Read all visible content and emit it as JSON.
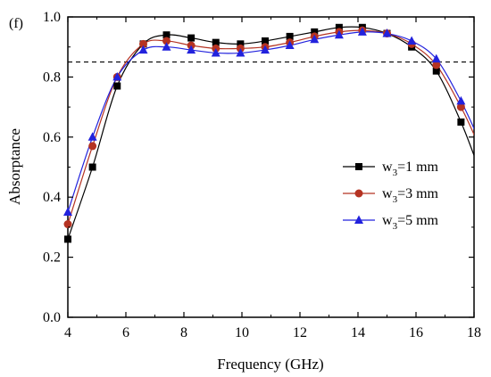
{
  "panel_label": "(f)",
  "chart_data": {
    "type": "line",
    "xlabel": "Frequency (GHz)",
    "ylabel": "Absorptance",
    "xlim": [
      4,
      18
    ],
    "ylim": [
      0.0,
      1.0
    ],
    "xticks": [
      4,
      6,
      8,
      10,
      12,
      14,
      16,
      18
    ],
    "yticks": [
      0.0,
      0.2,
      0.4,
      0.6,
      0.8,
      1.0
    ],
    "xtick_labels": [
      "4",
      "6",
      "8",
      "10",
      "12",
      "14",
      "16",
      "18"
    ],
    "ytick_labels": [
      "0.0",
      "0.2",
      "0.4",
      "0.6",
      "0.8",
      "1.0"
    ],
    "reference_line": {
      "y": 0.85,
      "style": "dashed"
    },
    "legend_position": "center-right",
    "series": [
      {
        "name": "w3=1 mm",
        "legend_main": "w",
        "legend_sub": "3",
        "legend_rest": "=1 mm",
        "color": "#000000",
        "marker_fill": "#000000",
        "marker": "square",
        "x": [
          4.0,
          4.85,
          5.7,
          6.6,
          7.4,
          8.25,
          9.1,
          9.95,
          10.8,
          11.65,
          12.5,
          13.35,
          14.15,
          15.0,
          15.85,
          16.7,
          17.55
        ],
        "y": [
          0.26,
          0.5,
          0.77,
          0.91,
          0.94,
          0.93,
          0.915,
          0.91,
          0.92,
          0.935,
          0.95,
          0.965,
          0.965,
          0.945,
          0.9,
          0.82,
          0.65
        ]
      },
      {
        "name": "w3=3 mm",
        "legend_main": "w",
        "legend_sub": "3",
        "legend_rest": "=3 mm",
        "color": "#b53322",
        "marker_fill": "#b53322",
        "marker": "circle",
        "x": [
          4.0,
          4.85,
          5.7,
          6.6,
          7.4,
          8.25,
          9.1,
          9.95,
          10.8,
          11.65,
          12.5,
          13.35,
          14.15,
          15.0,
          15.85,
          16.7,
          17.55
        ],
        "y": [
          0.31,
          0.57,
          0.8,
          0.91,
          0.92,
          0.905,
          0.895,
          0.895,
          0.9,
          0.915,
          0.935,
          0.95,
          0.955,
          0.945,
          0.91,
          0.84,
          0.7
        ]
      },
      {
        "name": "w3=5 mm",
        "legend_main": "w",
        "legend_sub": "3",
        "legend_rest": "=5 mm",
        "color": "#2222dd",
        "marker_fill": "#2222dd",
        "marker": "triangle",
        "x": [
          4.0,
          4.85,
          5.7,
          6.6,
          7.4,
          8.25,
          9.1,
          9.95,
          10.8,
          11.65,
          12.5,
          13.35,
          14.15,
          15.0,
          15.85,
          16.7,
          17.55
        ],
        "y": [
          0.35,
          0.6,
          0.8,
          0.89,
          0.9,
          0.89,
          0.88,
          0.88,
          0.89,
          0.905,
          0.925,
          0.94,
          0.95,
          0.945,
          0.92,
          0.86,
          0.72
        ]
      }
    ]
  }
}
